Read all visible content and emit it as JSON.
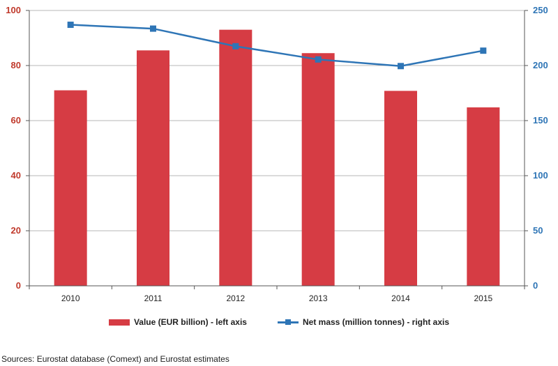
{
  "colors": {
    "bar": "#d63c44",
    "line": "#2e75b6",
    "left_axis_text": "#c0392b",
    "right_axis_text": "#2e75b6",
    "grid": "#b7b7b7"
  },
  "chart_data": {
    "type": "bar",
    "categories": [
      "2010",
      "2011",
      "2012",
      "2013",
      "2014",
      "2015"
    ],
    "series": [
      {
        "name": "Value (EUR billion) - left axis",
        "type": "bar",
        "axis": "left",
        "values": [
          71,
          85.5,
          93,
          84.5,
          70.8,
          64.8
        ]
      },
      {
        "name": "Net mass (million tonnes) - right axis",
        "type": "line",
        "axis": "right",
        "values": [
          237,
          233.5,
          217.5,
          205.5,
          199.5,
          213.5
        ]
      }
    ],
    "left_axis": {
      "range": [
        0,
        100
      ],
      "ticks": [
        "0",
        "20",
        "40",
        "60",
        "80",
        "100"
      ]
    },
    "right_axis": {
      "range": [
        0,
        250
      ],
      "ticks": [
        "0",
        "50",
        "100",
        "150",
        "200",
        "250"
      ]
    },
    "grid": true,
    "legend_position": "bottom"
  },
  "legend": {
    "bar_label": "Value (EUR billion) - left axis",
    "line_label": "Net mass (million tonnes) - right axis"
  },
  "source": "Sources: Eurostat database (Comext) and Eurostat estimates"
}
